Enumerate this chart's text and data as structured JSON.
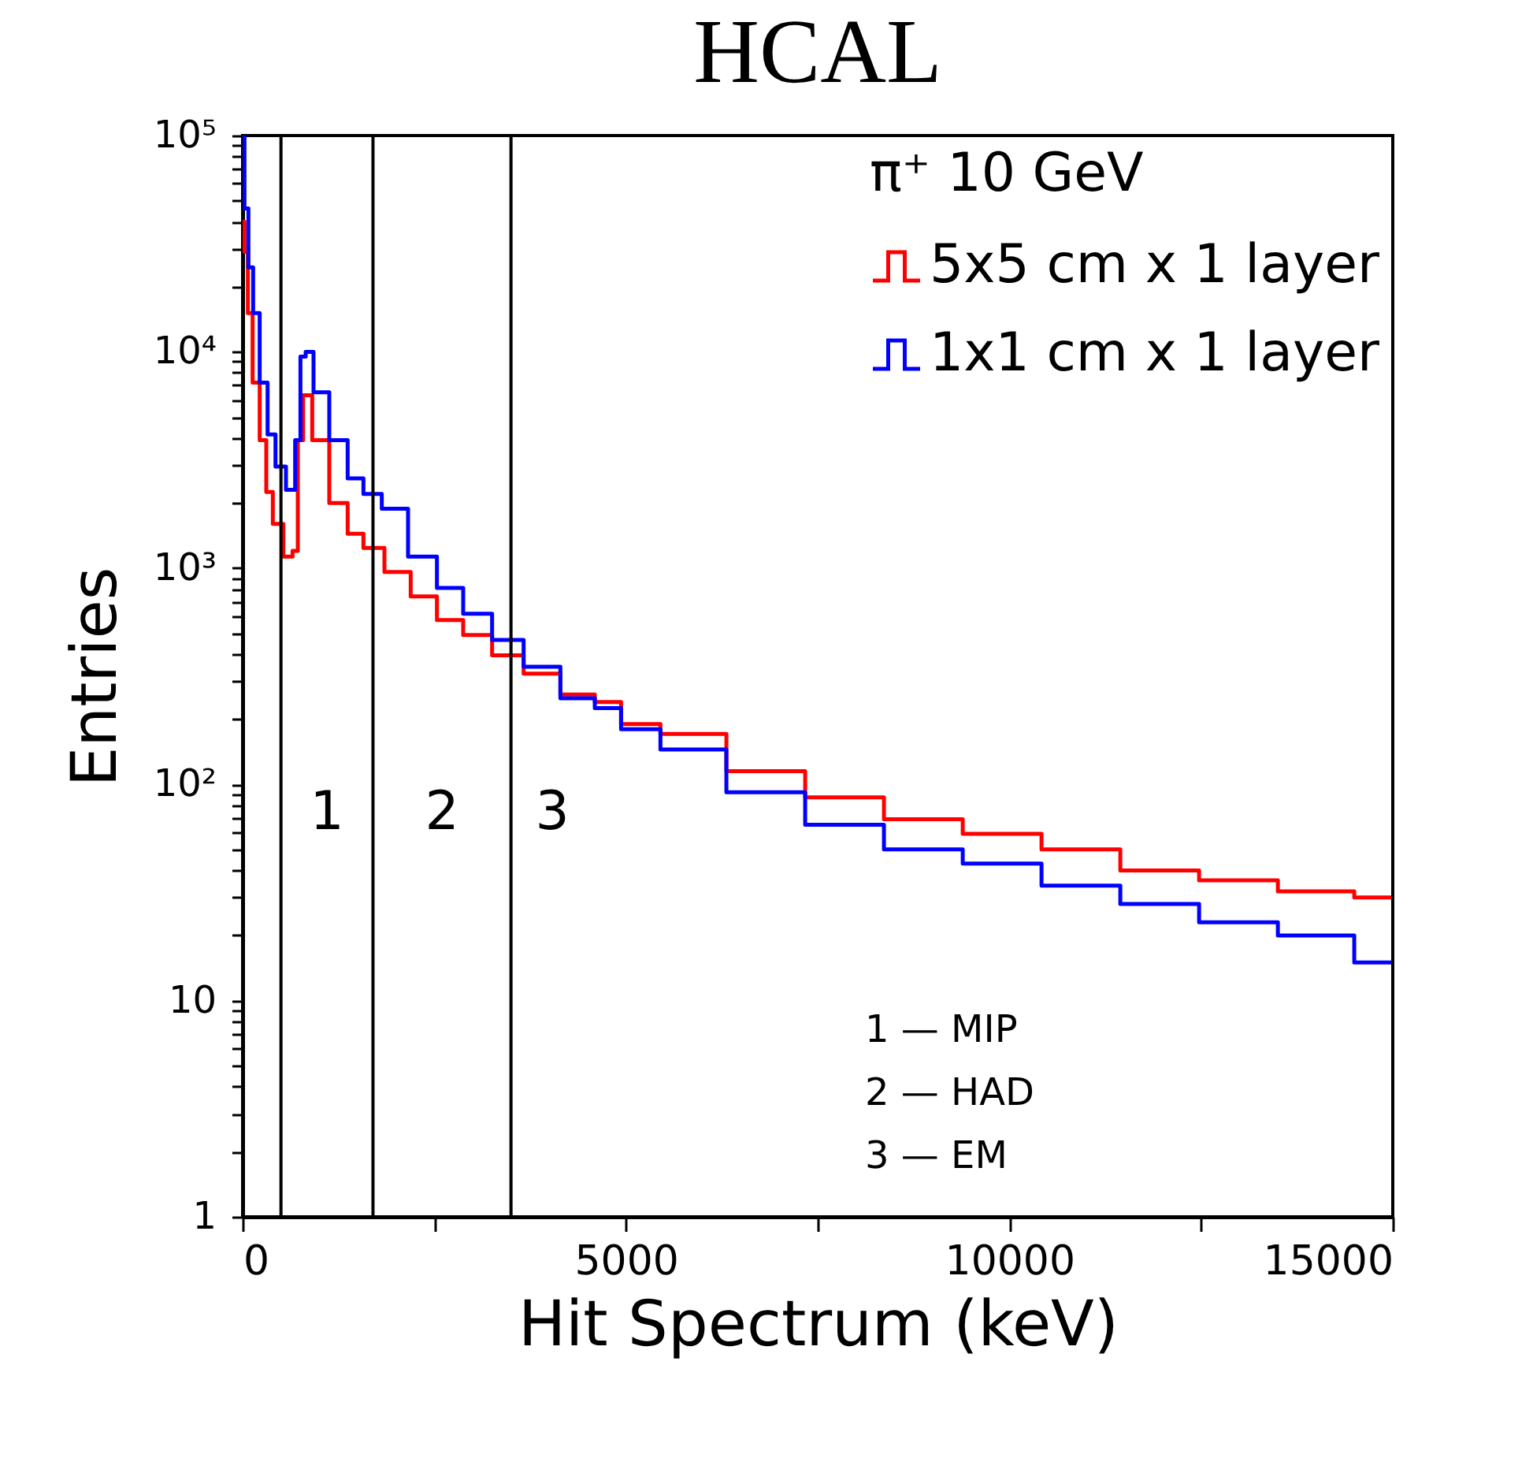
{
  "chart_data": {
    "type": "step",
    "title": "HCAL",
    "xlabel": "Hit Spectrum (keV)",
    "ylabel": "Entries",
    "legend_title": "π⁺ 10 GeV",
    "legend": "top right",
    "log": "y",
    "grid": false,
    "line_style": "solid",
    "xlim": [
      0,
      15000
    ],
    "xticks": [
      0,
      {
        "value": 2500,
        "label": null
      },
      5000,
      {
        "value": 7500,
        "label": null
      },
      10000,
      {
        "value": 12500,
        "label": null
      },
      15000
    ],
    "ylim": [
      1,
      100000
    ],
    "yticks": [
      1,
      {
        "value": 2,
        "label": null
      },
      {
        "value": 3,
        "label": null
      },
      {
        "value": 4,
        "label": null
      },
      {
        "value": 5,
        "label": null
      },
      {
        "value": 6,
        "label": null
      },
      {
        "value": 7,
        "label": null
      },
      {
        "value": 8,
        "label": null
      },
      {
        "value": 9,
        "label": null
      },
      10,
      {
        "value": 20,
        "label": null
      },
      {
        "value": 30,
        "label": null
      },
      {
        "value": 40,
        "label": null
      },
      {
        "value": 50,
        "label": null
      },
      {
        "value": 60,
        "label": null
      },
      {
        "value": 70,
        "label": null
      },
      {
        "value": 80,
        "label": null
      },
      {
        "value": 90,
        "label": null
      },
      {
        "value": 100,
        "label": "10²"
      },
      {
        "value": 200,
        "label": null
      },
      {
        "value": 300,
        "label": null
      },
      {
        "value": 400,
        "label": null
      },
      {
        "value": 500,
        "label": null
      },
      {
        "value": 600,
        "label": null
      },
      {
        "value": 700,
        "label": null
      },
      {
        "value": 800,
        "label": null
      },
      {
        "value": 900,
        "label": null
      },
      {
        "value": 1000,
        "label": "10³"
      },
      {
        "value": 2000,
        "label": null
      },
      {
        "value": 3000,
        "label": null
      },
      {
        "value": 4000,
        "label": null
      },
      {
        "value": 5000,
        "label": null
      },
      {
        "value": 6000,
        "label": null
      },
      {
        "value": 7000,
        "label": null
      },
      {
        "value": 8000,
        "label": null
      },
      {
        "value": 9000,
        "label": null
      },
      {
        "value": 10000,
        "label": "10⁴"
      },
      {
        "value": 20000,
        "label": null
      },
      {
        "value": 30000,
        "label": null
      },
      {
        "value": 40000,
        "label": null
      },
      {
        "value": 50000,
        "label": null
      },
      {
        "value": 60000,
        "label": null
      },
      {
        "value": 70000,
        "label": null
      },
      {
        "value": 80000,
        "label": null
      },
      {
        "value": 90000,
        "label": null
      },
      {
        "value": 100000,
        "label": "10⁵"
      }
    ],
    "series": [
      {
        "name": "5x5 cm x 1 layer",
        "color": "#ff0000",
        "x": [
          0,
          48,
          89,
          171,
          274,
          343,
          445,
          617,
          685,
          754,
          822,
          993,
          1267,
          1473,
          1678,
          2021,
          2363,
          2705,
          3048,
          3459,
          3870,
          4418,
          4768,
          5103,
          5795,
          6823,
          7850,
          8878,
          9905,
          10933,
          11960,
          12988,
          14015,
          14980
        ],
        "values": [
          40000,
          29000,
          15100,
          7200,
          3900,
          2250,
          1600,
          1130,
          1200,
          3900,
          6300,
          3900,
          2000,
          1440,
          1240,
          960,
          740,
          575,
          490,
          395,
          325,
          260,
          240,
          190,
          171,
          115,
          87,
          69,
          59,
          50,
          40,
          36,
          32,
          30
        ]
      },
      {
        "name": "1x1 cm x 1 layer",
        "color": "#0000ff",
        "x": [
          0,
          48,
          103,
          171,
          274,
          377,
          480,
          650,
          720,
          788,
          856,
          993,
          1267,
          1473,
          1678,
          1952,
          2363,
          2705,
          3048,
          3459,
          3870,
          4418,
          4768,
          5103,
          5795,
          6823,
          7850,
          8878,
          9905,
          10933,
          11960,
          12988,
          14015,
          14980
        ],
        "values": [
          100000,
          46000,
          24600,
          15100,
          7200,
          4150,
          2950,
          2300,
          3900,
          9500,
          10000,
          6500,
          3900,
          2600,
          2200,
          1880,
          1130,
          810,
          615,
          465,
          350,
          250,
          225,
          180,
          145,
          92,
          65,
          50,
          43,
          34,
          28,
          23,
          20,
          15
        ]
      }
    ],
    "ref_lines": [
      {
        "axis": "x",
        "value": 500
      },
      {
        "axis": "x",
        "value": 1700
      },
      {
        "axis": "x",
        "value": 3500
      }
    ],
    "annotations": [
      "1",
      "2",
      "3",
      "1 — MIP",
      "2 — HAD",
      "3 — EM"
    ]
  }
}
